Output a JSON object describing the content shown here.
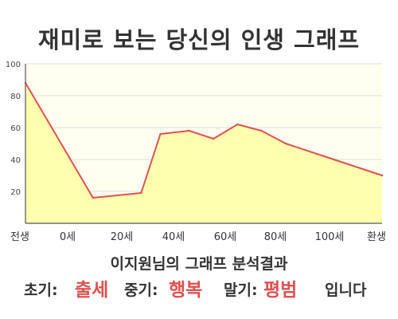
{
  "page": {
    "title": "재미로 보는 당신의 인생 그래프"
  },
  "result": {
    "heading": "이지원님의 그래프 분석결과",
    "early_label": "초기:",
    "early_value": "출세",
    "mid_label": "중기:",
    "mid_value": "행복",
    "late_label": "말기:",
    "late_value": "평범",
    "suffix": "입니다"
  },
  "colors": {
    "line": "#e05050",
    "fill": "#ffffb0",
    "plot_background": "#fffff0",
    "grid": "#dddddd",
    "highlight": "#e05050",
    "text": "#333333"
  },
  "chart_data": {
    "type": "area",
    "title": "재미로 보는 당신의 인생 그래프",
    "xlabel": "",
    "ylabel": "",
    "x_tick_labels": [
      "전생",
      "0세",
      "20세",
      "40세",
      "60세",
      "80세",
      "100세",
      "환생"
    ],
    "y_ticks": [
      20,
      40,
      60,
      80,
      100
    ],
    "ylim": [
      0,
      100
    ],
    "grid": true,
    "x": [
      -28,
      0,
      20,
      28,
      40,
      50,
      60,
      70,
      80,
      100,
      120
    ],
    "values": [
      88,
      16,
      19,
      56,
      58,
      53,
      62,
      58,
      50,
      40,
      30
    ]
  }
}
